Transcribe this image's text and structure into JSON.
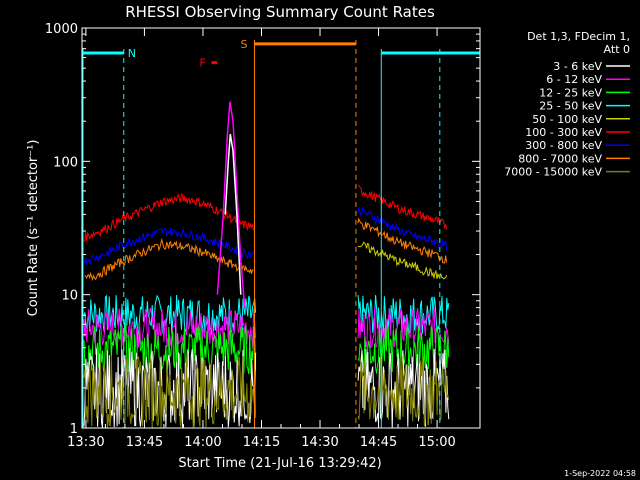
{
  "chart_data": {
    "type": "line",
    "title": "RHESSI Observing Summary Count Rates",
    "xlabel": "Start Time (21-Jul-16 13:29:42)",
    "ylabel": "Count Rate (s⁻¹ detector⁻¹)",
    "xlim_minutes": [
      -0.7,
      101.3
    ],
    "ylim": [
      1,
      1000
    ],
    "yscale": "log",
    "x_ticks": [
      "13:30",
      "13:45",
      "14:00",
      "14:15",
      "14:30",
      "14:45",
      "15:00"
    ],
    "y_ticks": [
      "1",
      "10",
      "100",
      "1000"
    ],
    "legend_header": [
      "Det 1,3, FDecim 1,",
      "Att 0"
    ],
    "series": [
      {
        "name": "3 - 6 keV",
        "color": "#ffffff"
      },
      {
        "name": "6 - 12 keV",
        "color": "#ff00ff"
      },
      {
        "name": "12 - 25 keV",
        "color": "#00ff00"
      },
      {
        "name": "25 - 50 keV",
        "color": "#00ffff"
      },
      {
        "name": "50 - 100 keV",
        "color": "#cccc00"
      },
      {
        "name": "100 - 300 keV",
        "color": "#ff0000"
      },
      {
        "name": "300 - 800 keV",
        "color": "#0000ff"
      },
      {
        "name": "800 - 7000 keV",
        "color": "#ff8000"
      },
      {
        "name": "7000 - 15000 keV",
        "color": "#808000"
      }
    ],
    "data_gap_minutes": [
      44,
      70
    ],
    "segments": {
      "red": [
        {
          "x": 0,
          "y": 27
        },
        {
          "x": 5,
          "y": 31
        },
        {
          "x": 10,
          "y": 37
        },
        {
          "x": 15,
          "y": 43
        },
        {
          "x": 20,
          "y": 50
        },
        {
          "x": 25,
          "y": 53
        },
        {
          "x": 28,
          "y": 51
        },
        {
          "x": 32,
          "y": 46
        },
        {
          "x": 36,
          "y": 40
        },
        {
          "x": 40,
          "y": 34
        },
        {
          "x": 43.5,
          "y": 32
        },
        {
          "x": 70,
          "y": 62
        },
        {
          "x": 75,
          "y": 53
        },
        {
          "x": 80,
          "y": 45
        },
        {
          "x": 85,
          "y": 40
        },
        {
          "x": 90,
          "y": 36
        },
        {
          "x": 93,
          "y": 33
        }
      ],
      "blue": [
        {
          "x": 0,
          "y": 18
        },
        {
          "x": 5,
          "y": 20
        },
        {
          "x": 10,
          "y": 24
        },
        {
          "x": 15,
          "y": 27
        },
        {
          "x": 20,
          "y": 30
        },
        {
          "x": 25,
          "y": 29
        },
        {
          "x": 30,
          "y": 27
        },
        {
          "x": 35,
          "y": 24
        },
        {
          "x": 40,
          "y": 21
        },
        {
          "x": 43.5,
          "y": 20
        },
        {
          "x": 70,
          "y": 44
        },
        {
          "x": 75,
          "y": 37
        },
        {
          "x": 80,
          "y": 31
        },
        {
          "x": 85,
          "y": 27
        },
        {
          "x": 90,
          "y": 25
        },
        {
          "x": 93,
          "y": 23
        }
      ],
      "orange": [
        {
          "x": 0,
          "y": 13
        },
        {
          "x": 5,
          "y": 15
        },
        {
          "x": 10,
          "y": 18
        },
        {
          "x": 15,
          "y": 21
        },
        {
          "x": 20,
          "y": 24
        },
        {
          "x": 25,
          "y": 23
        },
        {
          "x": 30,
          "y": 21
        },
        {
          "x": 35,
          "y": 18
        },
        {
          "x": 40,
          "y": 16
        },
        {
          "x": 43.5,
          "y": 15
        },
        {
          "x": 70,
          "y": 35
        },
        {
          "x": 75,
          "y": 30
        },
        {
          "x": 80,
          "y": 25
        },
        {
          "x": 85,
          "y": 22
        },
        {
          "x": 90,
          "y": 20
        },
        {
          "x": 93,
          "y": 18
        }
      ],
      "yellow": [
        {
          "x": 70,
          "y": 24
        },
        {
          "x": 75,
          "y": 21
        },
        {
          "x": 80,
          "y": 18
        },
        {
          "x": 85,
          "y": 16
        },
        {
          "x": 90,
          "y": 14
        },
        {
          "x": 93,
          "y": 13
        }
      ],
      "flare_magenta": [
        {
          "x": 34,
          "y": 10
        },
        {
          "x": 35.5,
          "y": 40
        },
        {
          "x": 36.5,
          "y": 150
        },
        {
          "x": 37.2,
          "y": 280
        },
        {
          "x": 38,
          "y": 200
        },
        {
          "x": 39,
          "y": 60
        },
        {
          "x": 40,
          "y": 18
        },
        {
          "x": 41,
          "y": 8
        }
      ],
      "flare_white": [
        {
          "x": 36,
          "y": 40
        },
        {
          "x": 36.8,
          "y": 100
        },
        {
          "x": 37.3,
          "y": 160
        },
        {
          "x": 38,
          "y": 120
        },
        {
          "x": 39,
          "y": 40
        },
        {
          "x": 40,
          "y": 10
        }
      ]
    },
    "noise_bands": [
      {
        "color": "#00ffff",
        "y": [
          5,
          10
        ]
      },
      {
        "color": "#ff00ff",
        "y": [
          4,
          8
        ]
      },
      {
        "color": "#00ff00",
        "y": [
          2.5,
          6
        ]
      },
      {
        "color": "#ffffff",
        "y": [
          1,
          4
        ]
      },
      {
        "color": "#808000",
        "y": [
          1,
          3.5
        ]
      }
    ],
    "bars": [
      {
        "label": "N",
        "color": "#00ffff",
        "y": 650,
        "x": [
          -0.7,
          10
        ],
        "boundaries": [
          10
        ]
      },
      {
        "label": "N",
        "color": "#00ffff",
        "y": 650,
        "x": [
          76,
          101.3
        ],
        "boundaries": [
          76,
          91
        ]
      },
      {
        "label": "S",
        "color": "#ff8000",
        "y": 760,
        "x": [
          43.5,
          69.5
        ],
        "boundaries": [
          43.5,
          69.5
        ]
      },
      {
        "label": "F",
        "color": "#ff0000",
        "y": 550,
        "x": [
          32.5,
          34
        ]
      }
    ]
  },
  "footer_timestamp": "1-Sep-2022 04:58"
}
